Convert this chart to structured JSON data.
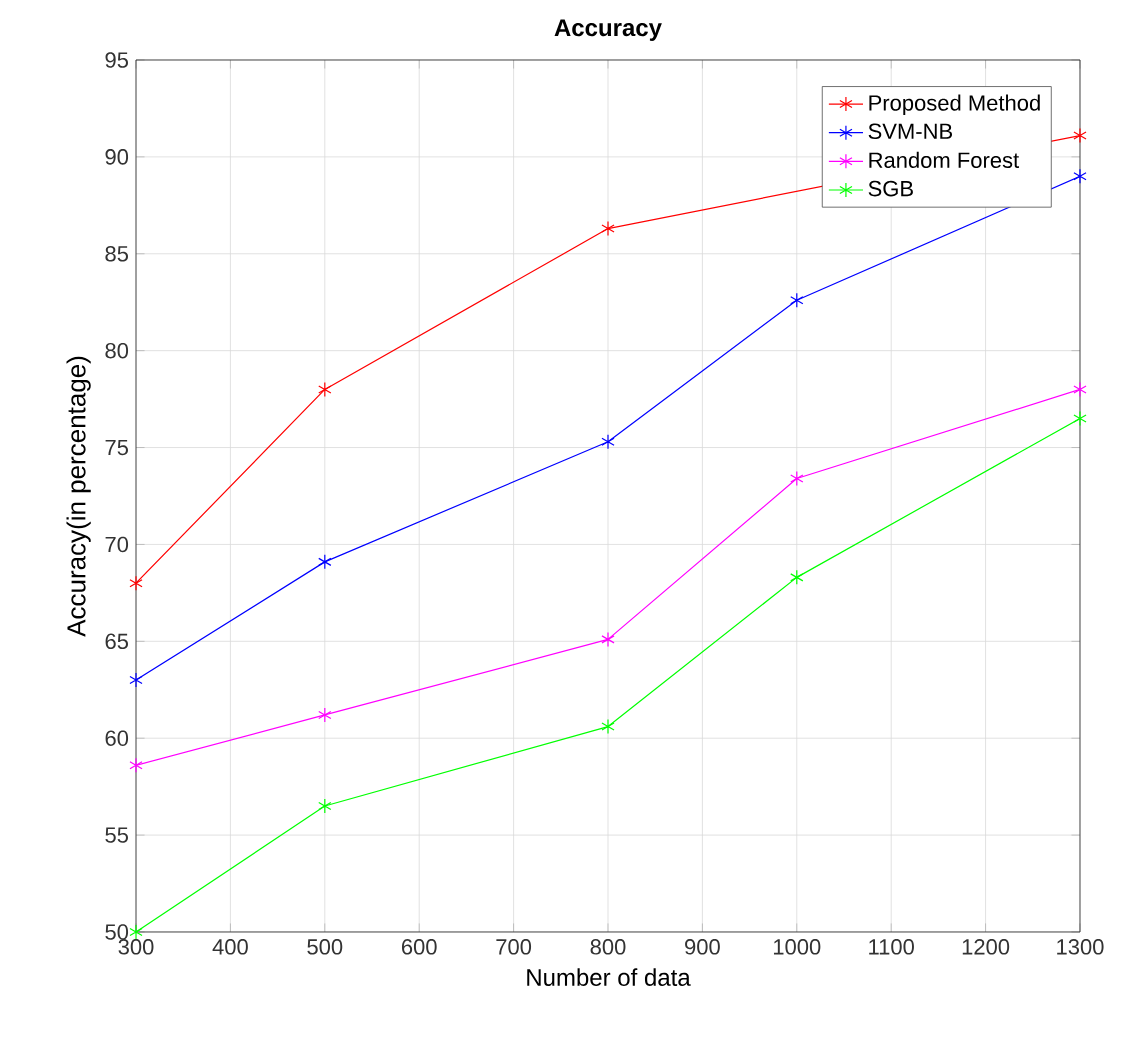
{
  "chart_data": {
    "type": "line",
    "title": "Accuracy",
    "xlabel": "Number of data",
    "ylabel": "Accuracy(in percentage)",
    "x": [
      300,
      500,
      800,
      1000,
      1300
    ],
    "series": [
      {
        "name": "Proposed Method",
        "color": "#ff0000",
        "values": [
          68.0,
          78.0,
          86.3,
          null,
          91.1
        ]
      },
      {
        "name": "SVM-NB",
        "color": "#0000ff",
        "values": [
          63.0,
          69.1,
          75.3,
          82.6,
          89.0
        ]
      },
      {
        "name": "Random Forest",
        "color": "#ff00ff",
        "values": [
          58.6,
          61.2,
          65.1,
          73.4,
          78.0
        ]
      },
      {
        "name": "SGB",
        "color": "#00ff00",
        "values": [
          50.0,
          56.5,
          60.6,
          68.3,
          76.5
        ]
      }
    ],
    "xlim": [
      300,
      1300
    ],
    "xticks": [
      300,
      400,
      500,
      600,
      700,
      800,
      900,
      1000,
      1100,
      1200,
      1300
    ],
    "ylim": [
      50,
      95
    ],
    "yticks": [
      50,
      55,
      60,
      65,
      70,
      75,
      80,
      85,
      90,
      95
    ],
    "grid": true,
    "legend": "top right",
    "marker": "cross",
    "line_style": "solid"
  }
}
